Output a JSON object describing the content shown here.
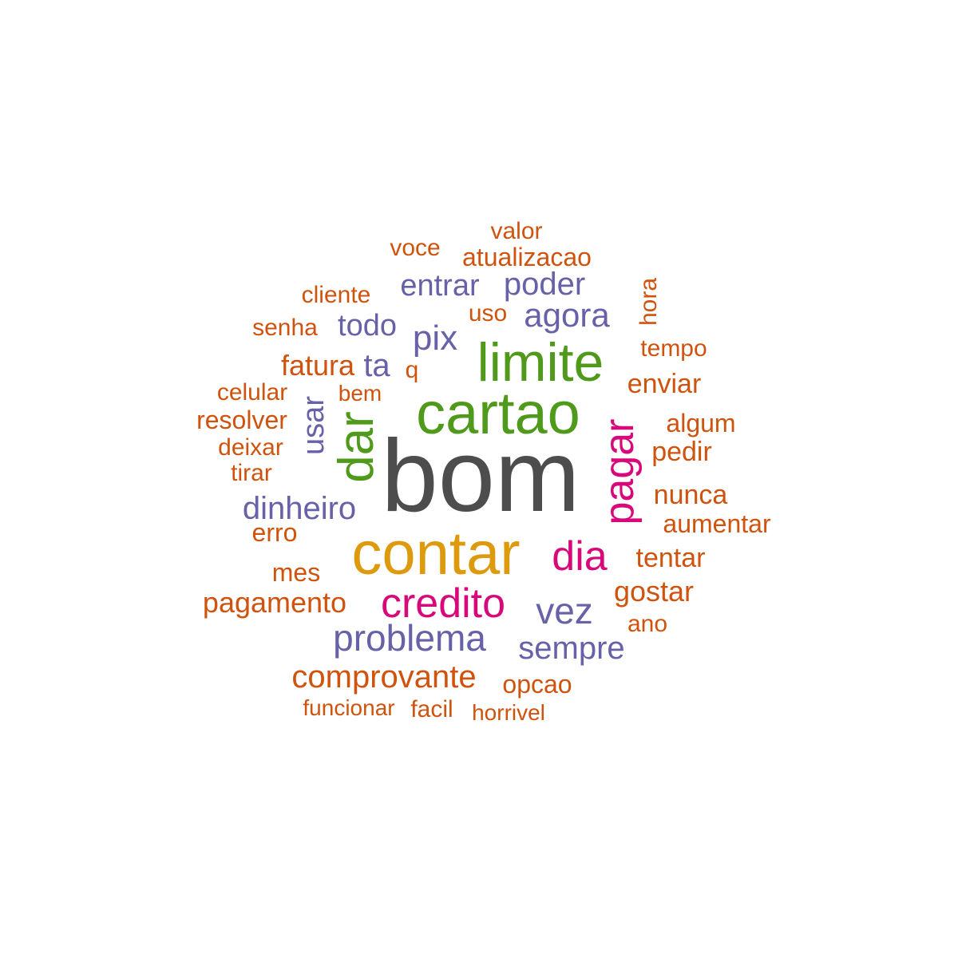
{
  "colors": {
    "gray": "#4d4d4d",
    "green": "#4f9a1b",
    "gold": "#dd9a0c",
    "magenta": "#d8087a",
    "purple": "#6761a8",
    "orange": "#d0530d"
  },
  "words": [
    {
      "text": "bom",
      "color": "gray"
    },
    {
      "text": "cartao",
      "color": "green"
    },
    {
      "text": "limite",
      "color": "green"
    },
    {
      "text": "contar",
      "color": "gold"
    },
    {
      "text": "dar",
      "color": "green"
    },
    {
      "text": "pagar",
      "color": "magenta"
    },
    {
      "text": "dia",
      "color": "magenta"
    },
    {
      "text": "credito",
      "color": "magenta"
    },
    {
      "text": "vez",
      "color": "purple"
    },
    {
      "text": "problema",
      "color": "purple"
    },
    {
      "text": "sempre",
      "color": "purple"
    },
    {
      "text": "usar",
      "color": "purple"
    },
    {
      "text": "ta",
      "color": "purple"
    },
    {
      "text": "pix",
      "color": "purple"
    },
    {
      "text": "todo",
      "color": "purple"
    },
    {
      "text": "entrar",
      "color": "purple"
    },
    {
      "text": "poder",
      "color": "purple"
    },
    {
      "text": "agora",
      "color": "purple"
    },
    {
      "text": "dinheiro",
      "color": "purple"
    },
    {
      "text": "valor",
      "color": "orange"
    },
    {
      "text": "voce",
      "color": "orange"
    },
    {
      "text": "atualizacao",
      "color": "orange"
    },
    {
      "text": "cliente",
      "color": "orange"
    },
    {
      "text": "senha",
      "color": "orange"
    },
    {
      "text": "uso",
      "color": "orange"
    },
    {
      "text": "hora",
      "color": "orange"
    },
    {
      "text": "tempo",
      "color": "orange"
    },
    {
      "text": "fatura",
      "color": "orange"
    },
    {
      "text": "q",
      "color": "orange"
    },
    {
      "text": "enviar",
      "color": "orange"
    },
    {
      "text": "celular",
      "color": "orange"
    },
    {
      "text": "bem",
      "color": "orange"
    },
    {
      "text": "resolver",
      "color": "orange"
    },
    {
      "text": "algum",
      "color": "orange"
    },
    {
      "text": "deixar",
      "color": "orange"
    },
    {
      "text": "pedir",
      "color": "orange"
    },
    {
      "text": "tirar",
      "color": "orange"
    },
    {
      "text": "nunca",
      "color": "orange"
    },
    {
      "text": "aumentar",
      "color": "orange"
    },
    {
      "text": "erro",
      "color": "orange"
    },
    {
      "text": "tentar",
      "color": "orange"
    },
    {
      "text": "mes",
      "color": "orange"
    },
    {
      "text": "gostar",
      "color": "orange"
    },
    {
      "text": "pagamento",
      "color": "orange"
    },
    {
      "text": "ano",
      "color": "orange"
    },
    {
      "text": "comprovante",
      "color": "orange"
    },
    {
      "text": "opcao",
      "color": "orange"
    },
    {
      "text": "funcionar",
      "color": "orange"
    },
    {
      "text": "facil",
      "color": "orange"
    },
    {
      "text": "horrivel",
      "color": "orange"
    }
  ]
}
